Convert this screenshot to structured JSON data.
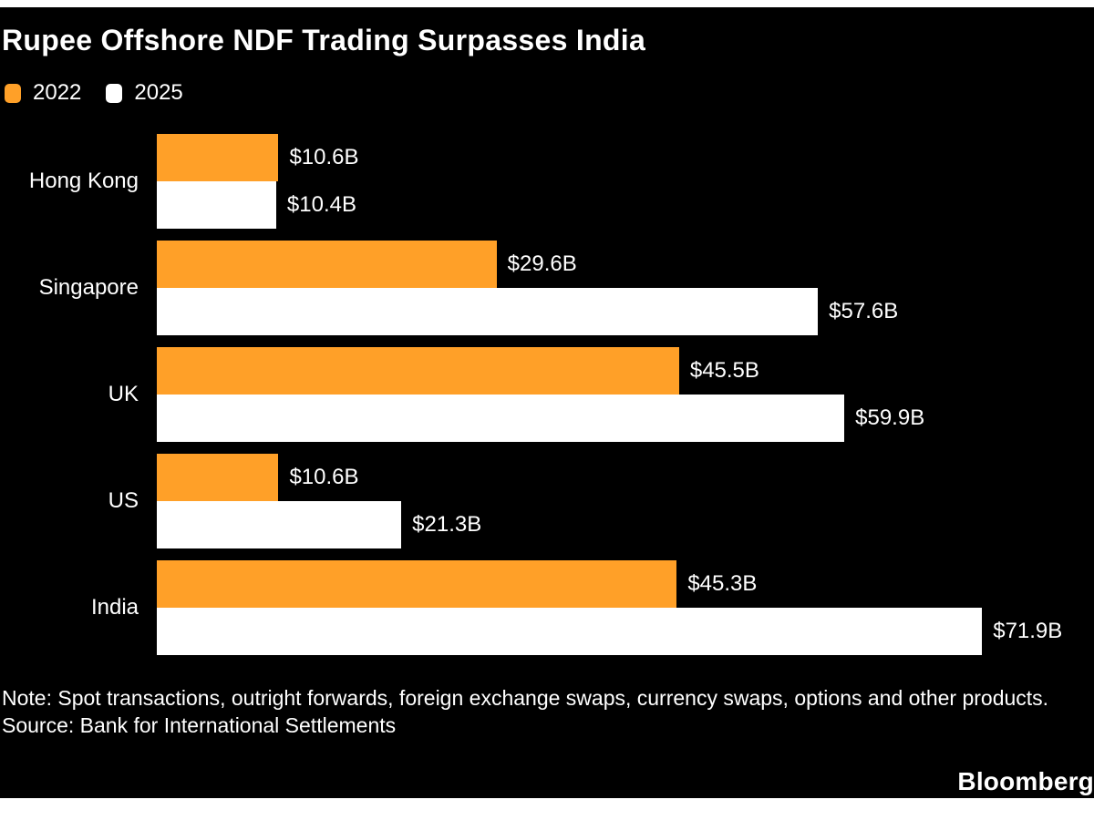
{
  "title": "Rupee Offshore NDF Trading Surpasses India",
  "legend": [
    {
      "label": "2022",
      "color": "#FFA028"
    },
    {
      "label": "2025",
      "color": "#FFFFFF"
    }
  ],
  "chart_data": {
    "type": "bar",
    "orientation": "horizontal",
    "title": "Rupee Offshore NDF Trading Surpasses India",
    "categories": [
      "Hong Kong",
      "Singapore",
      "UK",
      "US",
      "India"
    ],
    "series": [
      {
        "name": "2022",
        "color": "#FFA028",
        "values": [
          10.6,
          29.6,
          45.5,
          10.6,
          45.3
        ],
        "labels": [
          "$10.6B",
          "$29.6B",
          "$45.5B",
          "$10.6B",
          "$45.3B"
        ]
      },
      {
        "name": "2025",
        "color": "#FFFFFF",
        "values": [
          10.4,
          57.6,
          59.9,
          21.3,
          71.9
        ],
        "labels": [
          "$10.4B",
          "$57.6B",
          "$59.9B",
          "$21.3B",
          "$71.9B"
        ]
      }
    ],
    "value_unit": "billions of US dollars",
    "xlim": [
      0,
      80
    ],
    "grid": false,
    "legend_position": "top-left",
    "background": "#000000",
    "text_color": "#FFFFFF"
  },
  "footer": {
    "note": "Note: Spot transactions, outright forwards, foreign exchange swaps, currency swaps, options and other products.",
    "source": "Source: Bank for International Settlements",
    "brand": "Bloomberg"
  }
}
